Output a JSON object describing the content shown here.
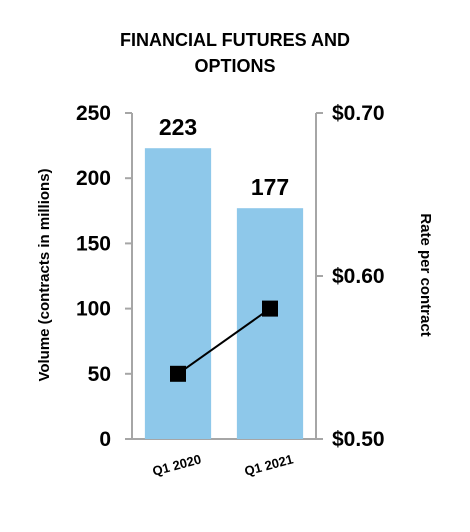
{
  "chart_data": {
    "type": "bar",
    "title_lines": [
      "FINANCIAL FUTURES AND",
      "OPTIONS"
    ],
    "categories": [
      "Q1 2020",
      "Q1 2021"
    ],
    "series": [
      {
        "axis": "left",
        "type": "bar",
        "values": [
          223,
          177
        ],
        "data_labels": [
          "223",
          "177"
        ],
        "color": "#8ec8ea"
      },
      {
        "axis": "right",
        "type": "line",
        "values": [
          0.54,
          0.58
        ],
        "marker": "square",
        "color": "#000000"
      }
    ],
    "ylabel": "Volume (contracts in millions)",
    "ylabel_right": "Rate per contract",
    "ylim": [
      0,
      250
    ],
    "ylim_right": [
      0.5,
      0.7
    ],
    "yticks": [
      {
        "value": 0,
        "label": "0"
      },
      {
        "value": 50,
        "label": "50"
      },
      {
        "value": 100,
        "label": "100"
      },
      {
        "value": 150,
        "label": "150"
      },
      {
        "value": 200,
        "label": "200"
      },
      {
        "value": 250,
        "label": "250"
      }
    ],
    "yticks_right": [
      {
        "value": 0.5,
        "label": "$0.50"
      },
      {
        "value": 0.6,
        "label": "$0.60"
      },
      {
        "value": 0.7,
        "label": "$0.70"
      }
    ],
    "grid": false,
    "axis_color": "#a6a6a6"
  }
}
